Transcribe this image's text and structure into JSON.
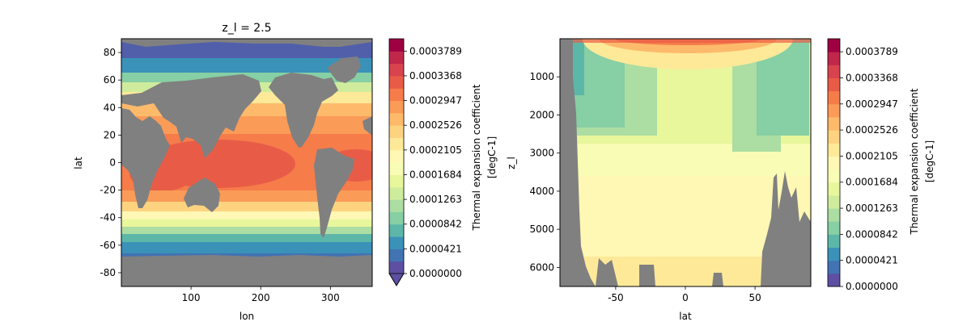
{
  "chart_data": [
    {
      "type": "heatmap",
      "title": "z_l = 2.5",
      "xlabel": "lon",
      "ylabel": "lat",
      "xlim": [
        0,
        360
      ],
      "ylim": [
        -90,
        90
      ],
      "xticks": [
        100,
        200,
        300
      ],
      "yticks": [
        80,
        60,
        40,
        20,
        0,
        -20,
        -40,
        -60,
        -80
      ],
      "colormap": "Spectral_r",
      "land_color": "#808080",
      "colorbar": {
        "label_line1": "Thermal expansion coefficient",
        "label_line2": "[degC-1]",
        "extend": "min",
        "tick_labels": [
          "0.0003789",
          "0.0003368",
          "0.0002947",
          "0.0002526",
          "0.0002105",
          "0.0001684",
          "0.0001263",
          "0.0000842",
          "0.0000421",
          "0.0000000"
        ]
      }
    },
    {
      "type": "heatmap",
      "title": "",
      "xlabel": "lat",
      "ylabel": "z_l",
      "xlim": [
        -90,
        90
      ],
      "ylim": [
        6500,
        0
      ],
      "y_inverted": true,
      "xticks": [
        -50,
        0,
        50
      ],
      "yticks": [
        1000,
        2000,
        3000,
        4000,
        5000,
        6000
      ],
      "colormap": "Spectral_r",
      "land_color": "#808080",
      "colorbar": {
        "label_line1": "Thermal expansion coefficient",
        "label_line2": "[degC-1]",
        "extend": "none",
        "tick_labels": [
          "0.0003789",
          "0.0003368",
          "0.0002947",
          "0.0002526",
          "0.0002105",
          "0.0001684",
          "0.0001263",
          "0.0000842",
          "0.0000421",
          "0.0000000"
        ]
      }
    }
  ],
  "colorbar_levels": 19,
  "level_colors": [
    "#5e4fa2",
    "#4273b3",
    "#3b92b8",
    "#5cb7a9",
    "#87cfa4",
    "#acdda2",
    "#cfec9d",
    "#e8f69c",
    "#f8fcb4",
    "#fff8b4",
    "#fee999",
    "#fdd380",
    "#fdba6b",
    "#fa9b58",
    "#f67c4a",
    "#e85c47",
    "#d8434e",
    "#c0274a",
    "#9e0142"
  ]
}
